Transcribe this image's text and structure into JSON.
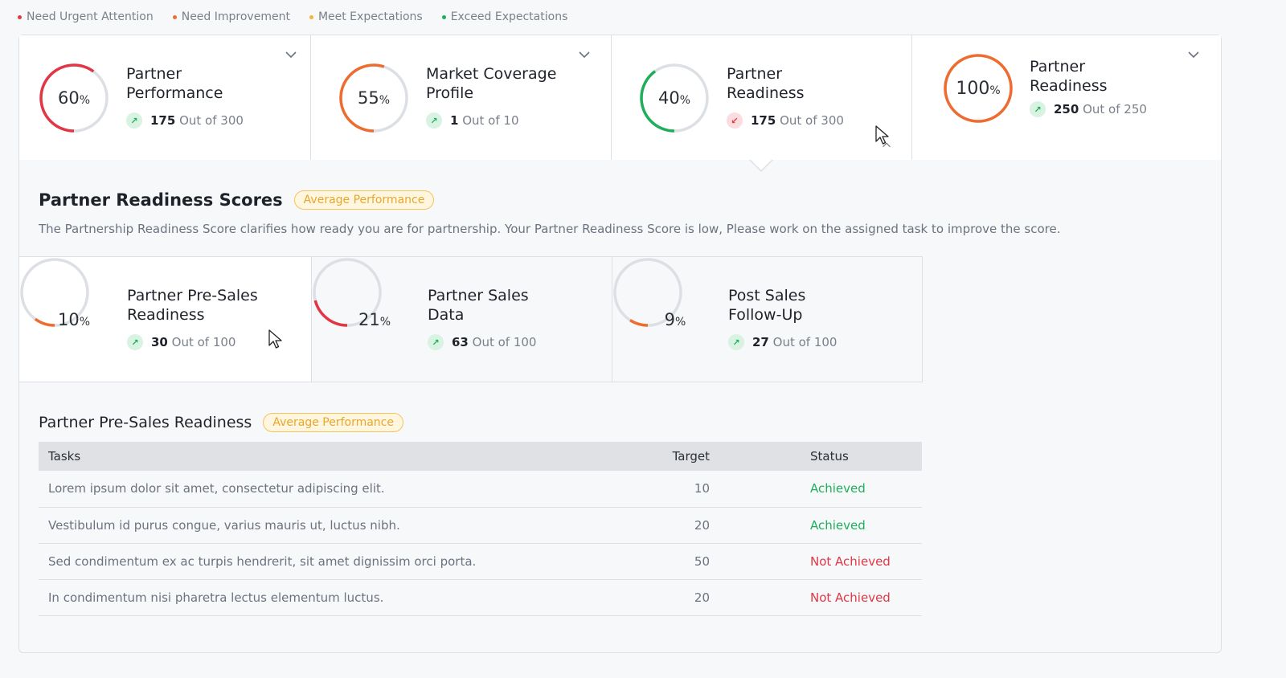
{
  "legend": [
    {
      "label": "Need Urgent Attention",
      "color": "#e23645"
    },
    {
      "label": "Need Improvement",
      "color": "#ef6c30"
    },
    {
      "label": "Meet Expectations",
      "color": "#f5b23a"
    },
    {
      "label": "Exceed Expectations",
      "color": "#1faf5a"
    }
  ],
  "kpis": [
    {
      "title_line1": "Partner",
      "title_line2": "Performance",
      "percent": "60",
      "percent_value": 60,
      "color": "#e23645",
      "value": "175",
      "total": "Out of 300",
      "trend": "up",
      "icon": "chevron-down-icon"
    },
    {
      "title_line1": "Market Coverage",
      "title_line2": "Profile",
      "percent": "55",
      "percent_value": 55,
      "color": "#ef6c30",
      "value": "1",
      "total": "Out of 10",
      "trend": "up",
      "icon": "chevron-down-icon"
    },
    {
      "title_line1": "Partner",
      "title_line2": "Readiness",
      "percent": "40",
      "percent_value": 40,
      "color": "#1faf5a",
      "value": "175",
      "total": "Out of 300",
      "trend": "down",
      "icon": "chevron-up-icon"
    },
    {
      "title_line1": "Partner",
      "title_line2": "Readiness",
      "percent": "100",
      "percent_value": 100,
      "color": "#ef6c30",
      "value": "250",
      "total": "Out of 250",
      "trend": "up",
      "icon": "chevron-down-icon"
    }
  ],
  "percent_sign": "%",
  "section": {
    "title": "Partner Readiness Scores",
    "badge": "Average Performance",
    "description": "The Partnership Readiness Score clarifies how ready you are for partnership. Your Partner Readiness Score is low, Please work on the assigned task to improve the score."
  },
  "subs": [
    {
      "title_line1": "Partner Pre-Sales",
      "title_line2": "Readiness",
      "percent": "10",
      "percent_value": 10,
      "color": "#ef6c30",
      "value": "30",
      "total": "Out of 100",
      "trend": "up"
    },
    {
      "title_line1": "Partner Sales",
      "title_line2": "Data",
      "percent": "21",
      "percent_value": 21,
      "color": "#e23645",
      "value": "63",
      "total": "Out of 100",
      "trend": "up"
    },
    {
      "title_line1": "Post Sales",
      "title_line2": "Follow-Up",
      "percent": "9",
      "percent_value": 9,
      "color": "#ef6c30",
      "value": "27",
      "total": "Out of 100",
      "trend": "up"
    }
  ],
  "table_section": {
    "title": "Partner Pre-Sales Readiness",
    "badge": "Average Performance",
    "headers": {
      "tasks": "Tasks",
      "target": "Target",
      "status": "Status"
    },
    "rows": [
      {
        "task": "Lorem ipsum dolor sit amet, consectetur adipiscing elit.",
        "target": "10",
        "status": "Achieved",
        "ok": true
      },
      {
        "task": "Vestibulum id purus congue, varius mauris ut, luctus nibh.",
        "target": "20",
        "status": "Achieved",
        "ok": true
      },
      {
        "task": "Sed condimentum ex ac turpis hendrerit, sit amet dignissim orci porta.",
        "target": "50",
        "status": "Not Achieved",
        "ok": false
      },
      {
        "task": "In condimentum nisi pharetra lectus elementum luctus.",
        "target": "20",
        "status": "Not Achieved",
        "ok": false
      }
    ]
  }
}
